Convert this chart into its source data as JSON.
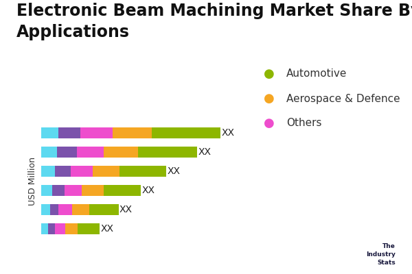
{
  "title": "Electronic Beam Machining Market Share By\nApplications",
  "ylabel": "USD Million",
  "bar_label": "XX",
  "n_bars": 6,
  "segments": {
    "cyan": [
      0.7,
      0.65,
      0.55,
      0.45,
      0.35,
      0.28
    ],
    "purple": [
      0.9,
      0.8,
      0.65,
      0.5,
      0.35,
      0.28
    ],
    "magenta": [
      1.3,
      1.1,
      0.9,
      0.7,
      0.55,
      0.42
    ],
    "orange": [
      1.6,
      1.4,
      1.1,
      0.9,
      0.7,
      0.5
    ],
    "olive": [
      2.8,
      2.4,
      1.9,
      1.5,
      1.2,
      0.9
    ]
  },
  "colors": {
    "cyan": "#5DD9F0",
    "purple": "#7B52AB",
    "magenta": "#EE4DCD",
    "orange": "#F5A623",
    "olive": "#8DB600"
  },
  "legend_items": [
    {
      "label": "Automotive",
      "color": "#8DB600"
    },
    {
      "label": "Aerospace & Defence",
      "color": "#F5A623"
    },
    {
      "label": "Others",
      "color": "#EE4DCD"
    }
  ],
  "bar_height": 0.55,
  "background_color": "#ffffff",
  "title_fontsize": 17,
  "axis_label_fontsize": 9,
  "legend_fontsize": 11,
  "watermark_text": "The\nIndustry\nStats"
}
